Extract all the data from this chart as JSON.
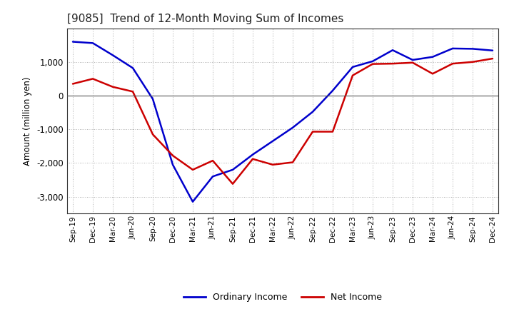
{
  "title": "[9085]  Trend of 12-Month Moving Sum of Incomes",
  "ylabel": "Amount (million yen)",
  "labels": [
    "Sep-19",
    "Dec-19",
    "Mar-20",
    "Jun-20",
    "Sep-20",
    "Dec-20",
    "Mar-21",
    "Jun-21",
    "Sep-21",
    "Dec-21",
    "Mar-22",
    "Jun-22",
    "Sep-22",
    "Dec-22",
    "Mar-23",
    "Jun-23",
    "Sep-23",
    "Dec-23",
    "Mar-24",
    "Jun-24",
    "Sep-24",
    "Dec-24"
  ],
  "ordinary_income": [
    1600,
    1560,
    1200,
    820,
    -100,
    -2050,
    -3150,
    -2400,
    -2200,
    -1750,
    -1350,
    -950,
    -480,
    150,
    850,
    1020,
    1350,
    1060,
    1150,
    1400,
    1390,
    1340
  ],
  "net_income": [
    350,
    500,
    260,
    120,
    -1150,
    -1780,
    -2200,
    -1930,
    -2620,
    -1880,
    -2050,
    -1980,
    -1070,
    -1070,
    600,
    940,
    950,
    980,
    650,
    950,
    1000,
    1100
  ],
  "ordinary_color": "#0000cc",
  "net_color": "#cc0000",
  "ylim": [
    -3500,
    2000
  ],
  "yticks": [
    -3000,
    -2000,
    -1000,
    0,
    1000
  ],
  "background_color": "#ffffff",
  "grid_color": "#999999"
}
